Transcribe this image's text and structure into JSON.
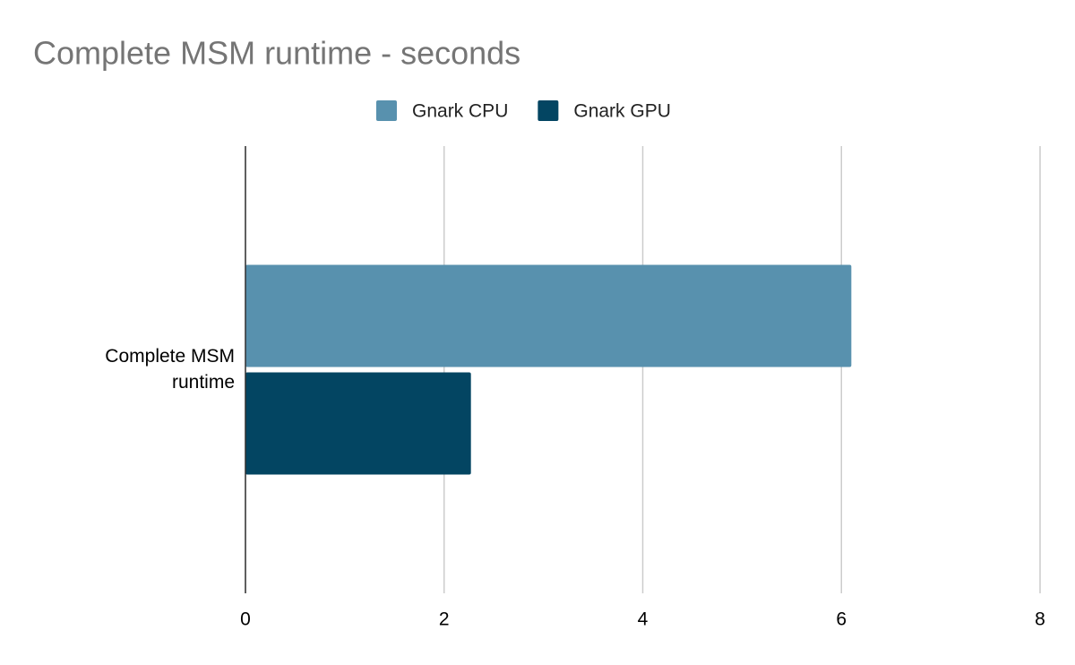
{
  "chart_data": {
    "type": "bar",
    "orientation": "horizontal",
    "title": "Complete MSM runtime - seconds",
    "categories": [
      "Complete MSM runtime"
    ],
    "series": [
      {
        "name": "Gnark CPU",
        "color": "#5891ae",
        "values": [
          6.1
        ]
      },
      {
        "name": "Gnark GPU",
        "color": "#034562",
        "values": [
          2.27
        ]
      }
    ],
    "xlim": [
      0,
      8
    ],
    "xticks": [
      0,
      2,
      4,
      6,
      8
    ],
    "grid": true,
    "legend": "top"
  }
}
